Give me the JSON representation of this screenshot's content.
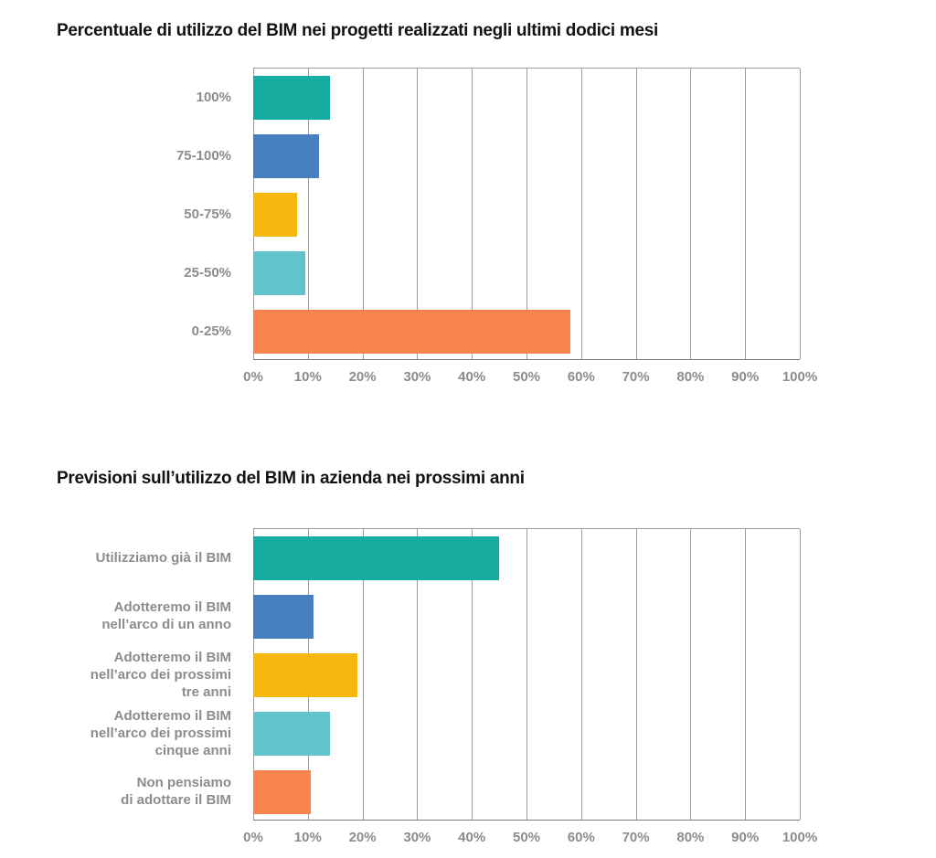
{
  "page": {
    "background": "#ffffff",
    "title_color": "#121212",
    "label_color": "#8c8c8c",
    "gridline_color": "#9b9b9b",
    "axis_line_color": "#7f7f7f"
  },
  "chart_data": [
    {
      "type": "bar",
      "orientation": "horizontal",
      "title": "Percentuale di utilizzo del BIM nei progetti realizzati negli ultimi dodici mesi",
      "categories": [
        "100%",
        "75-100%",
        "50-75%",
        "25-50%",
        "0-25%"
      ],
      "category_lines": [
        [
          "100%"
        ],
        [
          "75-100%"
        ],
        [
          "50-75%"
        ],
        [
          "25-50%"
        ],
        [
          "0-25%"
        ]
      ],
      "values": [
        14,
        12,
        8,
        9.5,
        58
      ],
      "bar_colors": [
        "#17aca0",
        "#4680be",
        "#f5b70d",
        "#62c4cb",
        "#f8854c"
      ],
      "xlim": [
        0,
        100
      ],
      "x_ticks": [
        "0%",
        "10%",
        "20%",
        "30%",
        "40%",
        "50%",
        "60%",
        "70%",
        "80%",
        "90%",
        "100%"
      ],
      "grid": true,
      "legend": false,
      "xlabel": "",
      "ylabel": ""
    },
    {
      "type": "bar",
      "orientation": "horizontal",
      "title": "Previsioni sull’utilizzo del BIM in azienda nei prossimi anni",
      "categories": [
        "Utilizziamo già il BIM",
        "Adotteremo il BIM nell’arco di un anno",
        "Adotteremo il BIM nell’arco dei prossimi tre anni",
        "Adotteremo il BIM nell’arco dei prossimi cinque anni",
        "Non pensiamo di adottare il BIM"
      ],
      "category_lines": [
        [
          "Utilizziamo già il BIM"
        ],
        [
          "Adotteremo il BIM",
          "nell’arco di un anno"
        ],
        [
          "Adotteremo il BIM",
          "nell’arco dei prossimi",
          "tre anni"
        ],
        [
          "Adotteremo il BIM",
          "nell’arco dei prossimi",
          "cinque anni"
        ],
        [
          "Non pensiamo",
          "di adottare il BIM"
        ]
      ],
      "values": [
        45,
        11,
        19,
        14,
        10.5
      ],
      "bar_colors": [
        "#17aca0",
        "#4680be",
        "#f5b70d",
        "#62c4cb",
        "#f8854c"
      ],
      "xlim": [
        0,
        100
      ],
      "x_ticks": [
        "0%",
        "10%",
        "20%",
        "30%",
        "40%",
        "50%",
        "60%",
        "70%",
        "80%",
        "90%",
        "100%"
      ],
      "grid": true,
      "legend": false,
      "xlabel": "",
      "ylabel": ""
    }
  ]
}
